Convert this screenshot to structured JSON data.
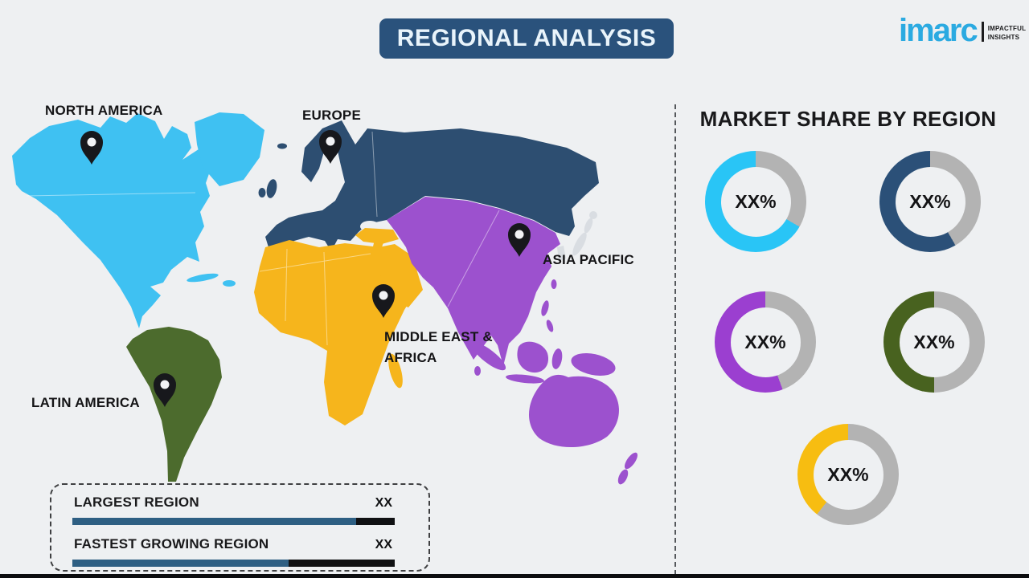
{
  "header": {
    "title": "REGIONAL ANALYSIS",
    "banner_color": "#2a527c"
  },
  "logo": {
    "brand": "imarc",
    "tagline_line1": "IMPACTFUL",
    "tagline_line2": "INSIGHTS",
    "brand_color": "#2baae1"
  },
  "map": {
    "regions": [
      {
        "name": "North America",
        "label": "NORTH AMERICA",
        "color": "#3fc1f2"
      },
      {
        "name": "Europe",
        "label": "EUROPE",
        "color": "#2d4e71"
      },
      {
        "name": "Asia Pacific",
        "label": "ASIA PACIFIC",
        "color": "#9c51ce"
      },
      {
        "name": "Middle East & Africa",
        "label_line1": "MIDDLE EAST &",
        "label_line2": "AFRICA",
        "color": "#f6b51c"
      },
      {
        "name": "Latin America",
        "label": "LATIN AMERICA",
        "color": "#4c6b2d"
      },
      {
        "name": "Uncolored land",
        "color": "#d9dde2"
      }
    ]
  },
  "market_share": {
    "title": "MARKET SHARE BY REGION",
    "donuts": [
      {
        "region": "North America",
        "value_label": "XX%",
        "color": "#29c5f6",
        "track_color": "#b3b3b3",
        "track_deg": 120
      },
      {
        "region": "Europe",
        "value_label": "XX%",
        "color": "#2b5078",
        "track_color": "#b3b3b3",
        "track_deg": 150
      },
      {
        "region": "Asia Pacific",
        "value_label": "XX%",
        "color": "#9b3fd0",
        "track_color": "#b3b3b3",
        "track_deg": 160
      },
      {
        "region": "Latin America",
        "value_label": "XX%",
        "color": "#48621f",
        "track_color": "#b3b3b3",
        "track_deg": 180
      },
      {
        "region": "Middle East & Africa",
        "value_label": "XX%",
        "color": "#f7bd11",
        "track_color": "#b3b3b3",
        "track_deg": 218
      }
    ]
  },
  "legend": {
    "rows": [
      {
        "label": "LARGEST REGION",
        "value": "XX",
        "fill_pct": 88
      },
      {
        "label": "FASTEST GROWING REGION",
        "value": "XX",
        "fill_pct": 67
      }
    ],
    "bar_fill_color": "#2e5f83",
    "bar_track_color": "#101113"
  },
  "chart_data": [
    {
      "type": "pie",
      "title": "MARKET SHARE BY REGION",
      "labels": [
        "North America",
        "Europe",
        "Asia Pacific",
        "Latin America",
        "Middle East & Africa"
      ],
      "values": [
        "XX%",
        "XX%",
        "XX%",
        "XX%",
        "XX%"
      ],
      "visual_fill_fractions": [
        0.67,
        0.58,
        0.56,
        0.5,
        0.39
      ],
      "colors": [
        "#29c5f6",
        "#2b5078",
        "#9b3fd0",
        "#48621f",
        "#f7bd11"
      ],
      "note": "Donut rings; percentages are XX% template placeholders, fractions estimated from colored arc length"
    },
    {
      "type": "bar",
      "orientation": "horizontal",
      "categories": [
        "LARGEST REGION",
        "FASTEST GROWING REGION"
      ],
      "values": [
        "XX",
        "XX"
      ],
      "visual_fill_fractions": [
        0.88,
        0.67
      ],
      "note": "Legend bars in dashed box; values are XX template placeholders"
    }
  ]
}
